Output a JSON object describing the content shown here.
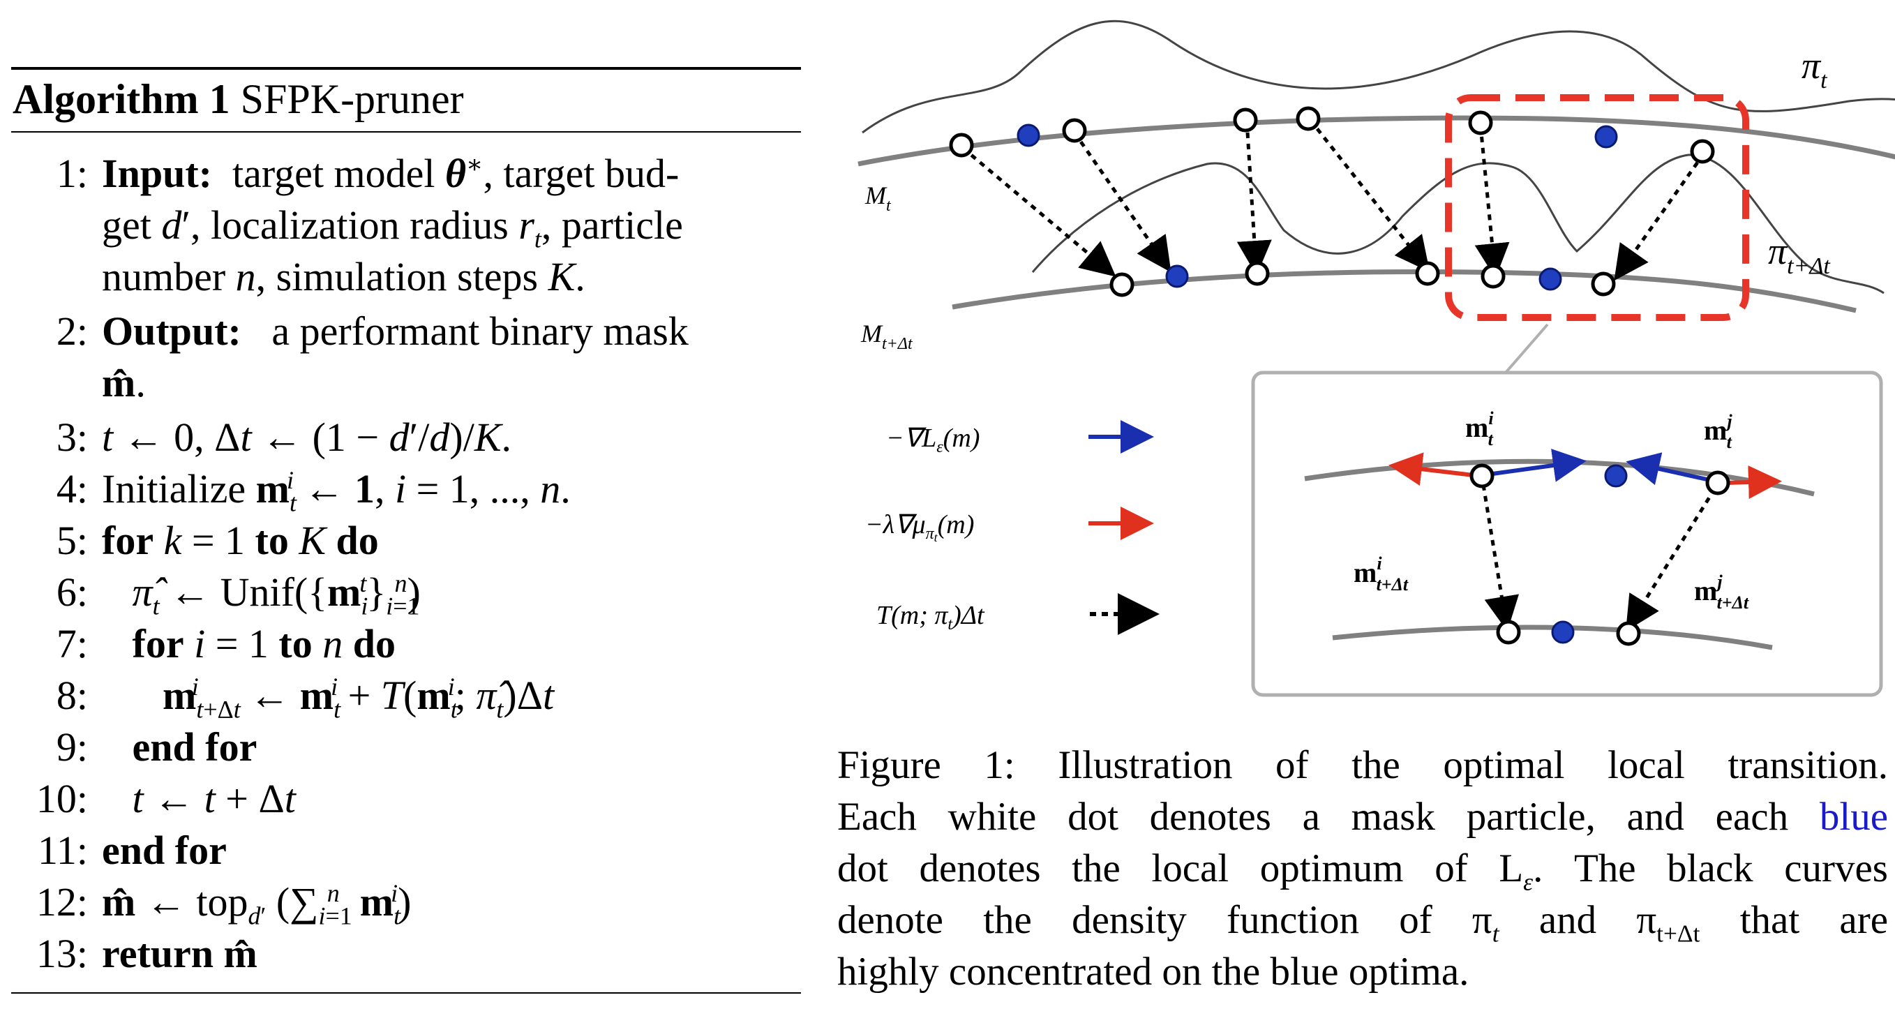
{
  "algorithm": {
    "label": "Algorithm 1",
    "name": "SFPK-pruner",
    "lines": [
      {
        "n": "1:",
        "text": "Input: target model θ*, target bud-"
      },
      {
        "n": "",
        "text": "get d′, localization radius r_t, particle"
      },
      {
        "n": "",
        "text": "number n, simulation steps K."
      },
      {
        "n": "2:",
        "text": "Output: a performant binary mask"
      },
      {
        "n": "",
        "text": "m̂."
      },
      {
        "n": "3:",
        "text": "t ← 0, Δt ← (1 − d′/d)/K."
      },
      {
        "n": "4:",
        "text": "Initialize m_t^i ← 1, i = 1, ..., n."
      },
      {
        "n": "5:",
        "text": "for k = 1 to K do"
      },
      {
        "n": "6:",
        "text": "π̂_t ← Unif({m_i^t}_{i=1}^n)"
      },
      {
        "n": "7:",
        "text": "for i = 1 to n do"
      },
      {
        "n": "8:",
        "text": "m_{t+Δt}^i ← m_t^i + T(m_t^i; π̂_t)Δt"
      },
      {
        "n": "9:",
        "text": "end for"
      },
      {
        "n": "10:",
        "text": "t ← t + Δt"
      },
      {
        "n": "11:",
        "text": "end for"
      },
      {
        "n": "12:",
        "text": "m̂ ← top_{d′} (Σ_{i=1}^n m_t^i)"
      },
      {
        "n": "13:",
        "text": "return m̂"
      }
    ]
  },
  "figure": {
    "labels": {
      "pi_t": "π",
      "pi_t_sub": "t",
      "pi_tdt": "π",
      "pi_tdt_sub": "t+Δt",
      "M_t": "M",
      "M_t_sub": "t",
      "M_tdt": "M",
      "M_tdt_sub": "t+Δt",
      "legend_grad_L": "−∇L",
      "legend_grad_L_sub": "ε",
      "legend_grad_L_arg": "(m)",
      "legend_grad_mu": "−λ∇μ",
      "legend_grad_mu_sub": "π",
      "legend_grad_mu_subsub": "t",
      "legend_grad_mu_arg": "(m)",
      "legend_T": "T(m; π",
      "legend_T_sub": "t",
      "legend_T_end": ")Δt",
      "inset_mti": "m",
      "inset_mti_sup": "i",
      "inset_mti_sub": "t",
      "inset_mtj": "m",
      "inset_mtj_sup": "j",
      "inset_mtj_sub": "t",
      "inset_mtdti": "m",
      "inset_mtdti_sup": "i",
      "inset_mtdti_sub": "t+Δt",
      "inset_mtdtj": "m",
      "inset_mtdtj_sup": "j",
      "inset_mtdtj_sub": "t+Δt"
    },
    "colors": {
      "blue_dot": "#1f3fbf",
      "red_arrow": "#e0301e",
      "blue_arrow": "#1a2fb0",
      "manifold": "#808080",
      "dashed_box": "#e8352a",
      "inset_border": "#b0b0b0"
    }
  },
  "caption": {
    "lines": [
      "Figure 1: Illustration of the optimal local transition.",
      "Each white dot denotes a mask particle, and each",
      "blue",
      "dot denotes the local optimum of L",
      "ε",
      ". The black curves",
      "denote the density function of π",
      "t",
      "and π",
      "t+Δt",
      "that are",
      "highly concentrated on the blue optima."
    ]
  }
}
